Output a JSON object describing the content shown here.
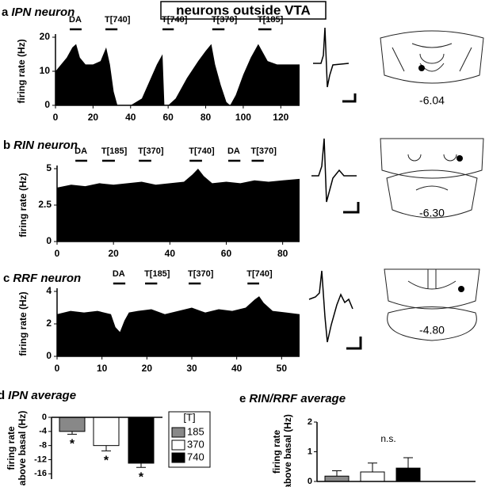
{
  "title": "neurons outside VTA",
  "chart_data": [
    {
      "type": "area",
      "panel": "a",
      "title": "IPN neuron",
      "ylabel": "firing rate (Hz)",
      "color": "#000000",
      "x": [
        0,
        3,
        6,
        9,
        11,
        13,
        16,
        20,
        24,
        27,
        29,
        31,
        33,
        40,
        46,
        50,
        54,
        57,
        58,
        60,
        64,
        70,
        76,
        80,
        83,
        85,
        88,
        91,
        93,
        96,
        100,
        104,
        108,
        110,
        113,
        118,
        124,
        130
      ],
      "values": [
        10,
        12,
        14,
        17,
        18,
        14,
        12,
        12,
        13,
        17,
        12,
        4,
        0,
        0,
        2,
        7,
        12,
        15,
        0,
        0,
        2,
        8,
        13,
        16,
        18,
        12,
        6,
        1,
        0,
        3,
        9,
        14,
        18,
        16,
        13,
        12,
        12,
        12
      ],
      "xlim": [
        0,
        130
      ],
      "xticks": [
        0,
        20,
        40,
        60,
        80,
        100,
        120
      ],
      "ylim": [
        0,
        20
      ],
      "yticks": [
        0,
        10,
        20
      ],
      "annotations": [
        {
          "label": "DA",
          "start": 7.6,
          "end": 13.9
        },
        {
          "label": "T[740]",
          "start": 26.6,
          "end": 33
        },
        {
          "label": "T[740]",
          "start": 57,
          "end": 63
        },
        {
          "label": "T[370]",
          "start": 83.5,
          "end": 90
        },
        {
          "label": "T[185]",
          "start": 108,
          "end": 115
        }
      ],
      "atlas_label": "-6.04"
    },
    {
      "type": "area",
      "panel": "b",
      "title": "RIN neuron",
      "ylabel": "firing rate (Hz)",
      "color": "#000000",
      "x": [
        0,
        5,
        10,
        15,
        20,
        25,
        30,
        35,
        40,
        45,
        48,
        50,
        52,
        55,
        60,
        65,
        70,
        75,
        80,
        86
      ],
      "values": [
        3.7,
        3.9,
        3.8,
        4.0,
        3.9,
        4.0,
        4.1,
        3.9,
        4.0,
        4.1,
        4.6,
        5.0,
        4.5,
        4.0,
        4.1,
        4.0,
        4.2,
        4.1,
        4.2,
        4.3
      ],
      "xlim": [
        0,
        86
      ],
      "xticks": [
        0,
        20,
        40,
        60,
        80
      ],
      "ylim": [
        0,
        5
      ],
      "yticks": [
        0,
        2.5,
        5
      ],
      "annotations": [
        {
          "label": "DA",
          "start": 6.5,
          "end": 10.7
        },
        {
          "label": "T[185]",
          "start": 16,
          "end": 20.5
        },
        {
          "label": "T[370]",
          "start": 29,
          "end": 33.4
        },
        {
          "label": "T[740]",
          "start": 47,
          "end": 51.4
        },
        {
          "label": "DA",
          "start": 60.7,
          "end": 65
        },
        {
          "label": "T[370]",
          "start": 69,
          "end": 73.3
        }
      ],
      "atlas_label": "-6.30"
    },
    {
      "type": "area",
      "panel": "c",
      "title": "RRF neuron",
      "ylabel": "firing rate (Hz)",
      "color": "#000000",
      "x": [
        0,
        3,
        6,
        9,
        12,
        13,
        14,
        15,
        16,
        18,
        21,
        24,
        27,
        30,
        33,
        36,
        39,
        42,
        44,
        45,
        46,
        48,
        51,
        54
      ],
      "values": [
        2.6,
        2.8,
        2.7,
        2.8,
        2.6,
        1.8,
        1.5,
        2.2,
        2.7,
        2.8,
        2.9,
        2.6,
        2.8,
        3.0,
        2.7,
        2.9,
        2.8,
        3.0,
        3.5,
        3.7,
        3.3,
        2.8,
        2.7,
        2.6
      ],
      "xlim": [
        0,
        54
      ],
      "xticks": [
        0,
        10,
        20,
        30,
        40,
        50
      ],
      "ylim": [
        0,
        4
      ],
      "yticks": [
        0,
        2,
        4
      ],
      "annotations": [
        {
          "label": "DA",
          "start": 12.5,
          "end": 15.2
        },
        {
          "label": "T[185]",
          "start": 19.6,
          "end": 22.3
        },
        {
          "label": "T[370]",
          "start": 29.3,
          "end": 32
        },
        {
          "label": "T[740]",
          "start": 42.4,
          "end": 45
        }
      ],
      "atlas_label": "-4.80"
    },
    {
      "type": "bar",
      "panel": "d",
      "title": "IPN average",
      "ylabel": [
        "firing rate",
        "above basal (Hz)"
      ],
      "ylim": [
        -17.5,
        0
      ],
      "yticks": [
        0,
        -4,
        -8,
        -12,
        -16
      ],
      "legend_title": "[T]",
      "series": [
        {
          "name": "185",
          "color": "#888888",
          "values": [
            -4
          ],
          "errors": [
            0.8
          ]
        },
        {
          "name": "370",
          "color": "#ffffff",
          "values": [
            -8
          ],
          "errors": [
            1.5
          ]
        },
        {
          "name": "740",
          "color": "#000000",
          "values": [
            -13
          ],
          "errors": [
            1.2
          ]
        }
      ],
      "significance": [
        "*",
        "*",
        "*"
      ]
    },
    {
      "type": "bar",
      "panel": "e",
      "title": "RIN/RRF average",
      "ylabel": [
        "firing rate",
        "above basal (Hz)"
      ],
      "ylim": [
        0,
        2
      ],
      "yticks": [
        0,
        1,
        2
      ],
      "series": [
        {
          "color": "#888888",
          "values": [
            0.18
          ],
          "errors": [
            0.18
          ]
        },
        {
          "color": "#ffffff",
          "values": [
            0.32
          ],
          "errors": [
            0.3
          ]
        },
        {
          "color": "#000000",
          "values": [
            0.45
          ],
          "errors": [
            0.35
          ]
        }
      ],
      "annotation": "n.s."
    }
  ]
}
